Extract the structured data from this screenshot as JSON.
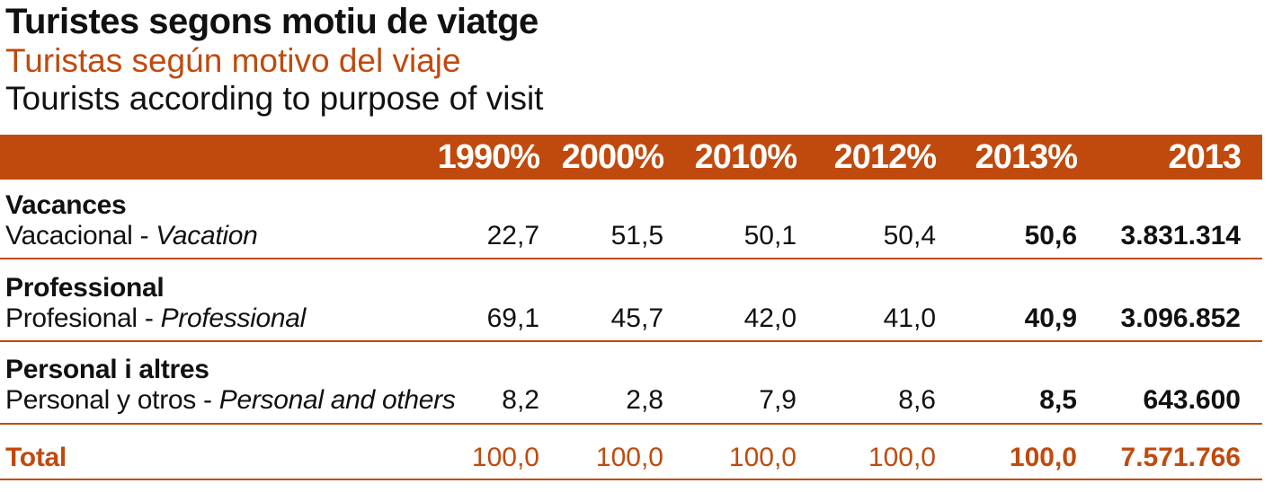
{
  "chart_data": {
    "type": "table",
    "title": "Turistes segons motiu de viatge",
    "subtitle_es": "Turistas según motivo del viaje",
    "subtitle_en": "Tourists according to purpose of visit",
    "columns": [
      "1990%",
      "2000%",
      "2010%",
      "2012%",
      "2013%",
      "2013"
    ],
    "rows": [
      {
        "label_ca": "Vacances",
        "label_es": "Vacacional - ",
        "label_en": "Vacation",
        "values": [
          "22,7",
          "51,5",
          "50,1",
          "50,4",
          "50,6",
          "3.831.314"
        ]
      },
      {
        "label_ca": "Professional",
        "label_es": "Profesional - ",
        "label_en": "Professional",
        "values": [
          "69,1",
          "45,7",
          "42,0",
          "41,0",
          "40,9",
          "3.096.852"
        ]
      },
      {
        "label_ca": "Personal i altres",
        "label_es": "Personal y otros - ",
        "label_en": "Personal and others",
        "values": [
          "8,2",
          "2,8",
          "7,9",
          "8,6",
          "8,5",
          "643.600"
        ]
      }
    ],
    "total": {
      "label": "Total",
      "values": [
        "100,0",
        "100,0",
        "100,0",
        "100,0",
        "100,0",
        "7.571.766"
      ]
    },
    "colors": {
      "accent": "#c04a0d",
      "text": "#111111"
    }
  }
}
